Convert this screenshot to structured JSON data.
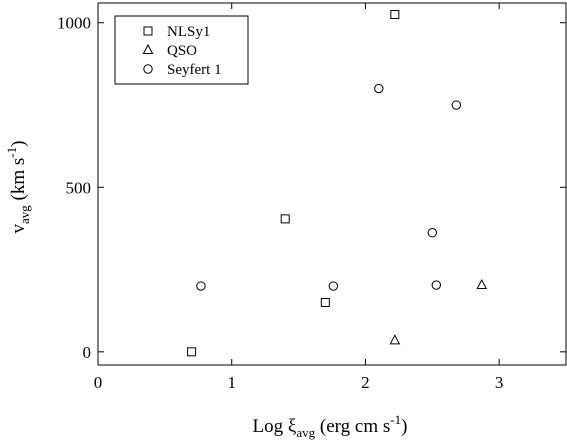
{
  "chart_data": {
    "type": "scatter",
    "title": "",
    "xlabel": {
      "main": "Log ξ",
      "sub": "avg",
      "unit_open": " (erg cm s",
      "sup": "-1",
      "unit_close": ")"
    },
    "ylabel": {
      "main": "v",
      "sub": "avg",
      "unit_open": " (km s",
      "sup": "-1",
      "unit_close": ")"
    },
    "xlim": [
      0,
      3.5
    ],
    "ylim": [
      -40,
      1060
    ],
    "x_ticks": [
      {
        "value": 0,
        "label": "0"
      },
      {
        "value": 1,
        "label": "1"
      },
      {
        "value": 2,
        "label": "2"
      },
      {
        "value": 3,
        "label": "3"
      }
    ],
    "y_ticks": [
      {
        "value": 0,
        "label": "0"
      },
      {
        "value": 500,
        "label": "500"
      },
      {
        "value": 1000,
        "label": "1000"
      }
    ],
    "grid": false,
    "legend_position": "top-left",
    "series": [
      {
        "name": "NLSy1",
        "marker": "square",
        "points": [
          {
            "x": 0.7,
            "y": 0
          },
          {
            "x": 1.4,
            "y": 404
          },
          {
            "x": 1.7,
            "y": 150
          },
          {
            "x": 2.22,
            "y": 1025
          }
        ]
      },
      {
        "name": "QSO",
        "marker": "triangle",
        "points": [
          {
            "x": 2.22,
            "y": 35
          },
          {
            "x": 2.87,
            "y": 203
          }
        ]
      },
      {
        "name": "Seyfert 1",
        "marker": "circle",
        "points": [
          {
            "x": 0.77,
            "y": 200
          },
          {
            "x": 1.76,
            "y": 200
          },
          {
            "x": 2.1,
            "y": 800
          },
          {
            "x": 2.5,
            "y": 362
          },
          {
            "x": 2.53,
            "y": 203
          },
          {
            "x": 2.68,
            "y": 750
          }
        ]
      }
    ]
  }
}
